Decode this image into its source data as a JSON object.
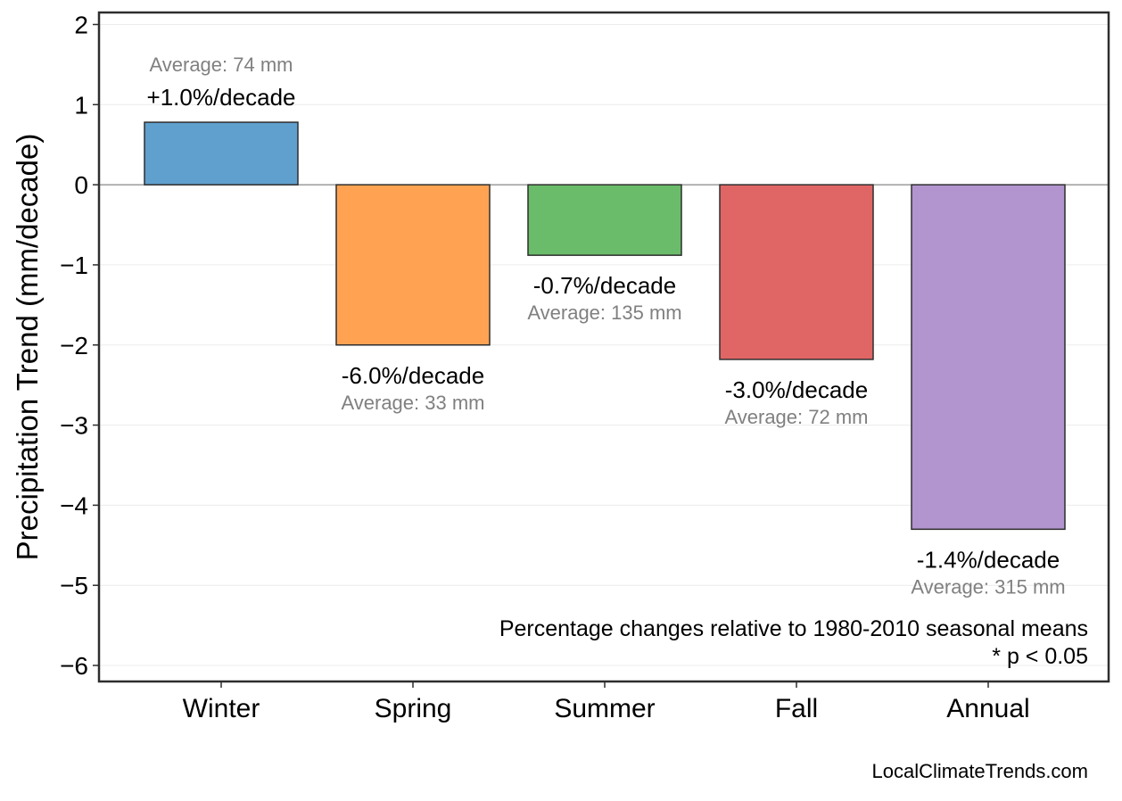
{
  "chart_data": {
    "type": "bar",
    "title": "",
    "xlabel": "",
    "ylabel": "Precipitation Trend (mm/decade)",
    "ylim": [
      -6.2,
      2.15
    ],
    "yticks": [
      2,
      1,
      0,
      -1,
      -2,
      -3,
      -4,
      -5,
      -6
    ],
    "ytick_labels": [
      "2",
      "1",
      "0",
      "−1",
      "−2",
      "−3",
      "−4",
      "−5",
      "−6"
    ],
    "grid": true,
    "categories": [
      "Winter",
      "Spring",
      "Summer",
      "Fall",
      "Annual"
    ],
    "values": [
      0.78,
      -2.0,
      -0.88,
      -2.18,
      -4.3
    ],
    "colors": [
      "#5fa0ce",
      "#ffa352",
      "#6abc6a",
      "#e06666",
      "#b294ce"
    ],
    "bar_edge_color": "#2e2e2e",
    "pct_labels": [
      "+1.0%/decade",
      "-6.0%/decade",
      "-0.7%/decade",
      "-3.0%/decade",
      "-1.4%/decade"
    ],
    "avg_labels": [
      "Average: 74 mm",
      "Average: 33 mm",
      "Average: 135 mm",
      "Average: 72 mm",
      "Average: 315 mm"
    ],
    "annotations": [
      "Percentage changes relative to 1980-2010 seasonal means",
      "* p < 0.05"
    ]
  },
  "footer": {
    "credit": "LocalClimateTrends.com"
  }
}
